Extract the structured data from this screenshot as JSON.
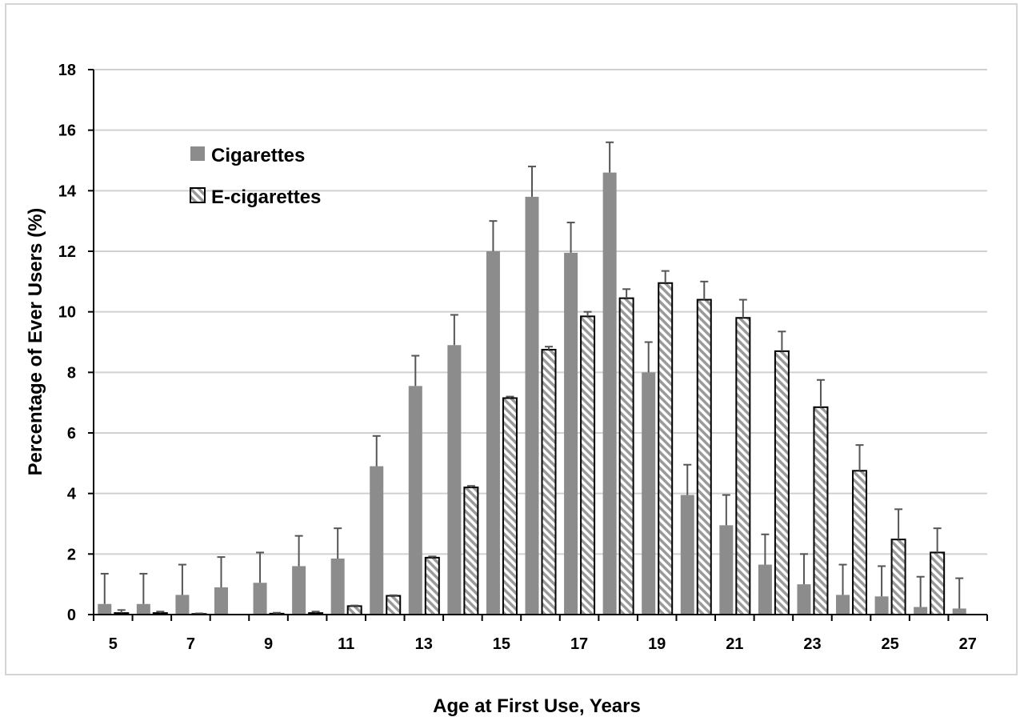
{
  "chart_data": {
    "type": "bar",
    "xlabel": "Age at First Use, Years",
    "ylabel": "Percentage of Ever Users (%)",
    "ylim": [
      0,
      18
    ],
    "yticks": [
      0,
      2,
      4,
      6,
      8,
      10,
      12,
      14,
      16,
      18
    ],
    "categories": [
      5,
      6,
      7,
      8,
      9,
      10,
      11,
      12,
      13,
      14,
      15,
      16,
      17,
      18,
      19,
      20,
      21,
      22,
      23,
      24,
      25,
      26,
      27
    ],
    "x_tick_labels": [
      "5",
      "7",
      "9",
      "11",
      "13",
      "15",
      "17",
      "19",
      "21",
      "23",
      "25",
      "27"
    ],
    "grid": true,
    "legend_position": "upper-left",
    "series": [
      {
        "name": "Cigarettes",
        "style": "solid",
        "color": "#8c8c8c",
        "values": [
          0.35,
          0.35,
          0.65,
          0.9,
          1.05,
          1.6,
          1.85,
          4.9,
          7.55,
          8.9,
          12.0,
          13.8,
          11.95,
          14.6,
          8.0,
          3.95,
          2.95,
          1.65,
          1.0,
          0.65,
          0.6,
          0.25,
          0.2
        ],
        "error_upper": [
          1.0,
          1.0,
          1.0,
          1.0,
          1.0,
          1.0,
          1.0,
          1.0,
          1.0,
          1.0,
          1.0,
          1.0,
          1.0,
          1.0,
          1.0,
          1.0,
          1.0,
          1.0,
          1.0,
          1.0,
          1.0,
          1.0,
          1.0
        ]
      },
      {
        "name": "E-cigarettes",
        "style": "hatched",
        "color": "#ffffff",
        "values": [
          0.05,
          0.05,
          0.02,
          0.0,
          0.03,
          0.05,
          0.28,
          0.62,
          1.88,
          4.2,
          7.15,
          8.75,
          9.85,
          10.45,
          10.95,
          10.4,
          9.8,
          8.7,
          6.85,
          4.75,
          2.48,
          2.05,
          null
        ],
        "error_upper": [
          0.1,
          0.05,
          0.02,
          0.0,
          0.03,
          0.05,
          0.02,
          0.02,
          0.04,
          0.05,
          0.05,
          0.1,
          0.15,
          0.3,
          0.4,
          0.6,
          0.6,
          0.65,
          0.9,
          0.85,
          1.0,
          0.8,
          null
        ]
      }
    ]
  }
}
